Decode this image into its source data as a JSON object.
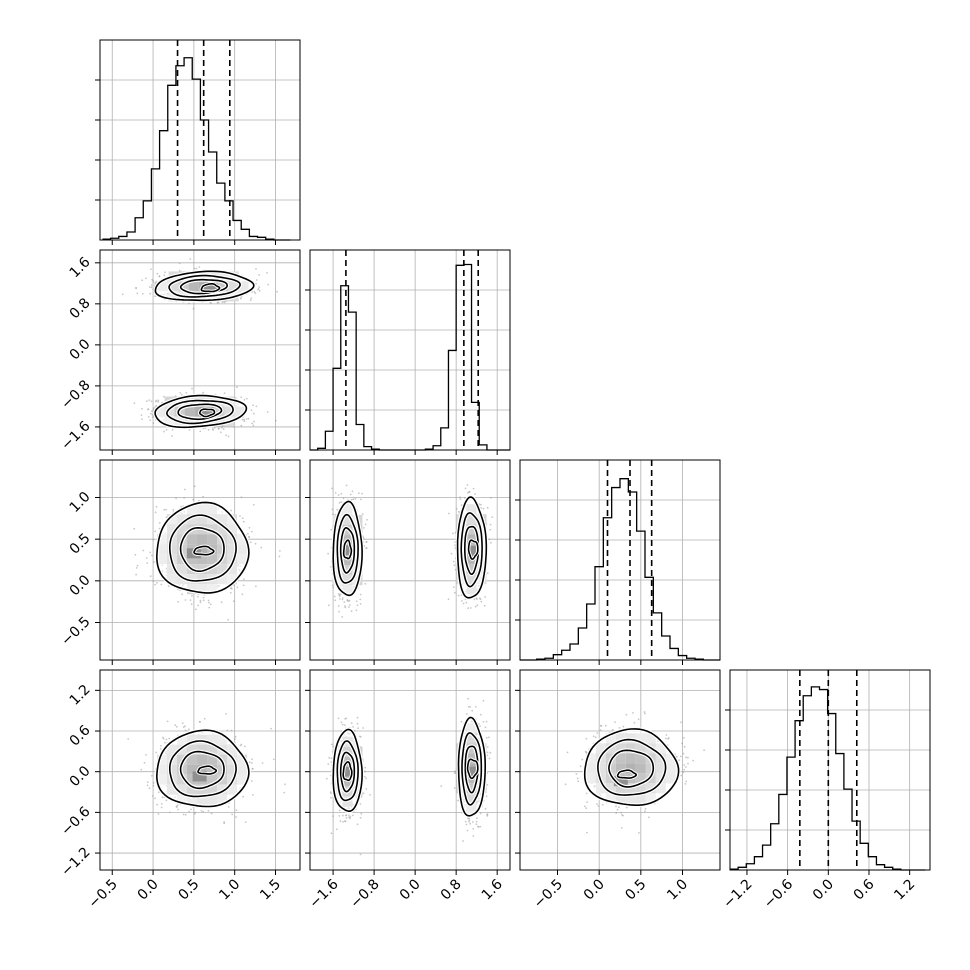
{
  "chart_data": {
    "type": "corner",
    "title": "",
    "grid": true,
    "colors": {
      "line": "#000000",
      "grid": "#b0b0b0",
      "points": "#9a9a9a",
      "frame": "#000000"
    },
    "parameters": [
      {
        "range": [
          -0.65,
          1.8
        ],
        "ticks": [
          -0.5,
          0.0,
          0.5,
          1.0,
          1.5
        ],
        "tick_labels": [
          "−0.5",
          "0.0",
          "0.5",
          "1.0",
          "1.5"
        ],
        "quantiles": [
          0.3,
          0.62,
          0.94
        ]
      },
      {
        "range": [
          -2.05,
          1.85
        ],
        "ticks": [
          -1.6,
          -0.8,
          0.0,
          0.8,
          1.6
        ],
        "tick_labels": [
          "−1.6",
          "−0.8",
          "0.0",
          "0.8",
          "1.6"
        ],
        "quantiles": [
          -1.35,
          0.95,
          1.23
        ]
      },
      {
        "range": [
          -0.95,
          1.45
        ],
        "ticks": [
          -0.5,
          0.0,
          0.5,
          1.0
        ],
        "tick_labels": [
          "−0.5",
          "0.0",
          "0.5",
          "1.0"
        ],
        "quantiles": [
          0.1,
          0.37,
          0.63
        ]
      },
      {
        "range": [
          -1.45,
          1.5
        ],
        "ticks": [
          -1.2,
          -0.6,
          0.0,
          0.6,
          1.2
        ],
        "tick_labels": [
          "−1.2",
          "−0.6",
          "0.0",
          "0.6",
          "1.2"
        ],
        "quantiles": [
          -0.42,
          0.0,
          0.42
        ]
      }
    ],
    "histograms": [
      {
        "param": 0,
        "bins": [
          -0.62,
          -0.52,
          -0.42,
          -0.32,
          -0.22,
          -0.12,
          -0.02,
          0.08,
          0.18,
          0.28,
          0.38,
          0.48,
          0.58,
          0.68,
          0.78,
          0.88,
          0.98,
          1.08,
          1.18,
          1.28,
          1.38,
          1.48,
          1.58,
          1.68
        ],
        "counts": [
          1,
          2,
          4,
          9,
          25,
          44,
          80,
          123,
          174,
          196,
          205,
          181,
          135,
          99,
          64,
          44,
          22,
          12,
          4,
          3,
          1,
          0,
          0
        ],
        "ylim": [
          0,
          225
        ]
      },
      {
        "param": 1,
        "bins": [
          -2.05,
          -1.9,
          -1.75,
          -1.6,
          -1.45,
          -1.3,
          -1.15,
          -1.0,
          -0.85,
          -0.7,
          -0.55,
          -0.4,
          -0.25,
          -0.1,
          0.05,
          0.2,
          0.35,
          0.5,
          0.65,
          0.8,
          0.95,
          1.1,
          1.25,
          1.4,
          1.55,
          1.7,
          1.85
        ],
        "counts": [
          0,
          2,
          22,
          96,
          193,
          162,
          30,
          4,
          1,
          0,
          0,
          0,
          0,
          0,
          0,
          1,
          5,
          26,
          117,
          217,
          218,
          56,
          6,
          0,
          0,
          0
        ],
        "ylim": [
          0,
          235
        ]
      },
      {
        "param": 2,
        "bins": [
          -0.95,
          -0.85,
          -0.75,
          -0.65,
          -0.55,
          -0.45,
          -0.35,
          -0.25,
          -0.15,
          -0.05,
          0.05,
          0.15,
          0.25,
          0.35,
          0.45,
          0.55,
          0.65,
          0.75,
          0.85,
          0.95,
          1.05,
          1.15,
          1.25,
          1.35,
          1.45
        ],
        "counts": [
          0,
          0,
          1,
          2,
          6,
          11,
          18,
          36,
          63,
          105,
          160,
          194,
          204,
          189,
          145,
          93,
          53,
          27,
          13,
          5,
          2,
          1,
          0,
          0
        ],
        "ylim": [
          0,
          225
        ]
      },
      {
        "param": 3,
        "bins": [
          -1.45,
          -1.33,
          -1.21,
          -1.09,
          -0.97,
          -0.85,
          -0.73,
          -0.61,
          -0.49,
          -0.37,
          -0.25,
          -0.13,
          -0.01,
          0.11,
          0.23,
          0.35,
          0.47,
          0.59,
          0.71,
          0.83,
          0.95,
          1.07,
          1.19,
          1.31,
          1.43
        ],
        "counts": [
          1,
          3,
          7,
          15,
          28,
          52,
          85,
          127,
          168,
          196,
          206,
          203,
          176,
          131,
          91,
          55,
          30,
          15,
          6,
          3,
          1,
          0,
          0,
          0
        ],
        "ylim": [
          0,
          225
        ]
      }
    ],
    "contour_panels": [
      {
        "x_param": 0,
        "y_param": 1,
        "clusters": [
          {
            "center": [
              0.62,
              1.14
            ],
            "sx": 0.3,
            "sy": 0.14,
            "rot": -0.04,
            "inner": [
              0.7,
              1.11
            ],
            "inner_size": 0.12,
            "dark": [
              0.7,
              1.1
            ]
          },
          {
            "center": [
              0.57,
              -1.3
            ],
            "sx": 0.28,
            "sy": 0.15,
            "rot": -0.06,
            "inner": [
              0.66,
              -1.32
            ],
            "inner_size": 0.1,
            "dark": [
              0.66,
              -1.32
            ]
          }
        ]
      },
      {
        "x_param": 0,
        "y_param": 2,
        "clusters": [
          {
            "center": [
              0.6,
              0.38
            ],
            "sx": 0.28,
            "sy": 0.27,
            "rot": 0.0,
            "inner": [
              0.62,
              0.36
            ],
            "inner_size": 0.13,
            "dark": [
              0.5,
              0.33
            ]
          }
        ]
      },
      {
        "x_param": 1,
        "y_param": 2,
        "clusters": [
          {
            "center": [
              -1.32,
              0.37
            ],
            "sx": 0.14,
            "sy": 0.28,
            "rot": 0.0,
            "inner": [
              -1.32,
              0.37
            ],
            "inner_size": 0.08,
            "dark": [
              -1.32,
              0.37
            ]
          },
          {
            "center": [
              1.1,
              0.38
            ],
            "sx": 0.14,
            "sy": 0.3,
            "rot": 0.0,
            "inner": [
              1.13,
              0.38
            ],
            "inner_size": 0.1,
            "dark": [
              1.2,
              0.36
            ]
          }
        ]
      },
      {
        "x_param": 0,
        "y_param": 3,
        "clusters": [
          {
            "center": [
              0.6,
              0.03
            ],
            "sx": 0.28,
            "sy": 0.28,
            "rot": 0.0,
            "inner": [
              0.66,
              0.02
            ],
            "inner_size": 0.12,
            "dark": [
              0.57,
              -0.07
            ]
          }
        ]
      },
      {
        "x_param": 1,
        "y_param": 3,
        "clusters": [
          {
            "center": [
              -1.32,
              0.0
            ],
            "sx": 0.14,
            "sy": 0.3,
            "rot": 0.0,
            "inner": [
              -1.32,
              0.0
            ],
            "inner_size": 0.09,
            "dark": [
              -1.32,
              0.0
            ]
          },
          {
            "center": [
              1.1,
              0.05
            ],
            "sx": 0.13,
            "sy": 0.36,
            "rot": 0.0,
            "inner": [
              1.12,
              0.05
            ],
            "inner_size": 0.11,
            "dark": [
              1.12,
              0.0
            ]
          }
        ]
      },
      {
        "x_param": 2,
        "y_param": 3,
        "clusters": [
          {
            "center": [
              0.38,
              0.05
            ],
            "sx": 0.28,
            "sy": 0.28,
            "rot": 0.0,
            "inner": [
              0.33,
              -0.04
            ],
            "inner_size": 0.12,
            "dark": [
              0.26,
              -0.14
            ]
          }
        ]
      }
    ]
  }
}
